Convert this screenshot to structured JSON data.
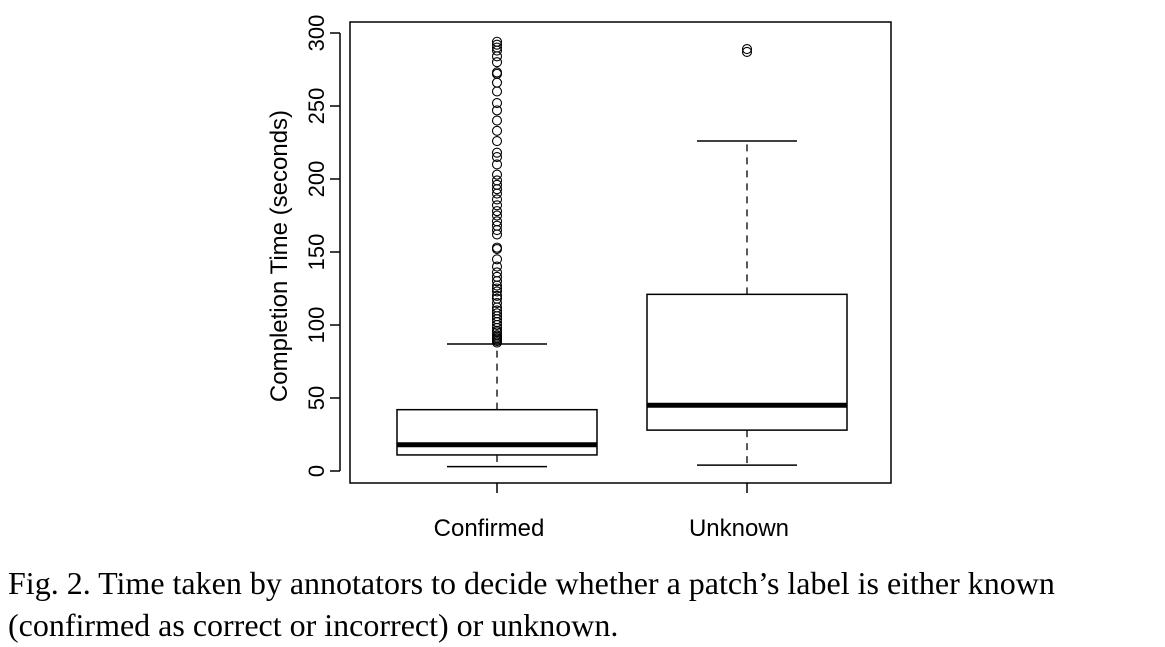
{
  "chart_data": {
    "type": "box",
    "title": "",
    "xlabel": "",
    "ylabel": "Completion Time (seconds)",
    "ylim": [
      0,
      300
    ],
    "yticks": [
      0,
      50,
      100,
      150,
      200,
      250,
      300
    ],
    "categories": [
      "Confirmed",
      "Unknown"
    ],
    "boxes": [
      {
        "name": "Confirmed",
        "min": 3,
        "q1": 11,
        "median": 18,
        "q3": 42,
        "max": 87,
        "outliers": [
          88,
          89,
          90,
          91,
          92,
          93,
          95,
          96,
          98,
          100,
          102,
          104,
          106,
          108,
          110,
          112,
          115,
          118,
          120,
          123,
          125,
          127,
          130,
          133,
          136,
          140,
          145,
          152,
          153,
          162,
          165,
          168,
          171,
          175,
          178,
          182,
          186,
          190,
          193,
          196,
          199,
          203,
          210,
          215,
          218,
          226,
          233,
          240,
          247,
          252,
          260,
          266,
          272,
          273,
          280,
          284,
          288,
          290,
          292,
          294
        ]
      },
      {
        "name": "Unknown",
        "min": 4,
        "q1": 28,
        "median": 45,
        "q3": 121,
        "max": 226,
        "outliers": [
          287,
          289
        ]
      }
    ]
  },
  "caption": {
    "text": "Fig. 2.  Time taken by annotators to decide whether a patch’s label is either known (confirmed as correct or incorrect) or unknown."
  }
}
